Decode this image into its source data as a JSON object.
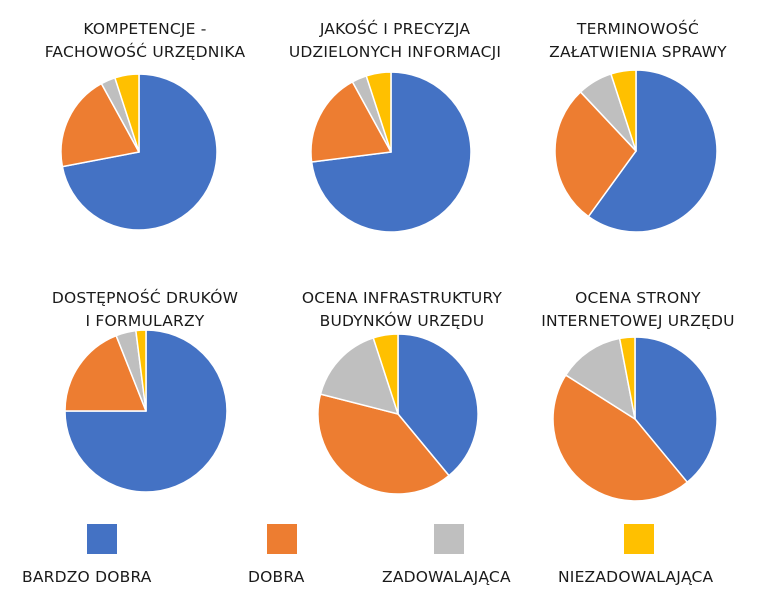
{
  "chart_data": [
    {
      "type": "pie",
      "title_lines": [
        "KOMPETENCJE -",
        "FACHOWOŚĆ URZĘDNIKA"
      ],
      "values": [
        72,
        20,
        3,
        5
      ]
    },
    {
      "type": "pie",
      "title_lines": [
        "JAKOŚĆ I PRECYZJA",
        "UDZIELONYCH INFORMACJI"
      ],
      "values": [
        73,
        19,
        3,
        5
      ]
    },
    {
      "type": "pie",
      "title_lines": [
        "TERMINOWOŚĆ",
        "ZAŁATWIENIA SPRAWY"
      ],
      "values": [
        60,
        28,
        7,
        5
      ]
    },
    {
      "type": "pie",
      "title_lines": [
        "DOSTĘPNOŚĆ DRUKÓW",
        "I FORMULARZY"
      ],
      "values": [
        75,
        19,
        4,
        2
      ]
    },
    {
      "type": "pie",
      "title_lines": [
        "OCENA INFRASTRUKTURY",
        "BUDYNKÓW URZĘDU"
      ],
      "values": [
        39,
        40,
        16,
        5
      ]
    },
    {
      "type": "pie",
      "title_lines": [
        "OCENA STRONY",
        "INTERNETOWEJ URZĘDU"
      ],
      "values": [
        39,
        45,
        13,
        3
      ]
    }
  ],
  "legend": [
    {
      "label": "BARDZO DOBRA",
      "color": "#4472C4"
    },
    {
      "label": "DOBRA",
      "color": "#ED7D31"
    },
    {
      "label": "ZADOWALAJĄCA",
      "color": "#BFBFBF"
    },
    {
      "label": "NIEZADOWALAJĄCA",
      "color": "#FFC000"
    }
  ]
}
